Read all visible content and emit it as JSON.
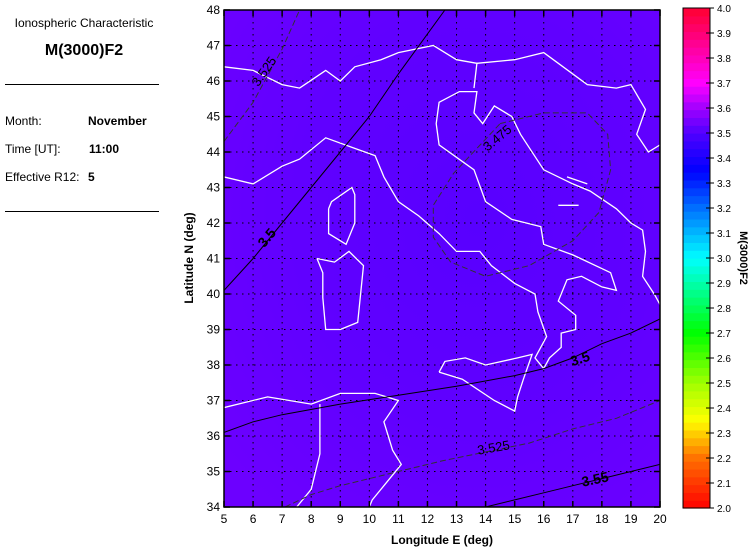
{
  "info": {
    "subtitle": "Ionospheric Characteristic",
    "title": "M(3000)F2",
    "month_label": "Month:",
    "month": "November",
    "time_label": "Time [UT]:",
    "time": "11:00",
    "r12_label": "Effective R12:",
    "r12": "5"
  },
  "chart_data": {
    "type": "heatmap",
    "xlabel": "Longitude E (deg)",
    "ylabel": "Latitude N (deg)",
    "xlim": [
      5,
      20
    ],
    "ylim": [
      34,
      48
    ],
    "xticks": [
      "5",
      "6",
      "7",
      "8",
      "9",
      "10",
      "11",
      "12",
      "13",
      "14",
      "15",
      "16",
      "17",
      "18",
      "19",
      "20"
    ],
    "yticks": [
      "34",
      "35",
      "36",
      "37",
      "38",
      "39",
      "40",
      "41",
      "42",
      "43",
      "44",
      "45",
      "46",
      "47",
      "48"
    ],
    "grid": true,
    "colorbar": {
      "label": "M(3000)F2",
      "range": [
        2.0,
        4.0
      ],
      "ticks": [
        "2.0",
        "2.1",
        "2.2",
        "2.3",
        "2.4",
        "2.5",
        "2.6",
        "2.7",
        "2.8",
        "2.9",
        "3.0",
        "3.1",
        "3.2",
        "3.3",
        "3.4",
        "3.5",
        "3.6",
        "3.7",
        "3.8",
        "3.9",
        "4.0"
      ],
      "colormap": [
        "#ff0000",
        "#ff8000",
        "#ffff00",
        "#00ff00",
        "#00ffff",
        "#0000ff",
        "#ff00ff",
        "#ff0030"
      ]
    },
    "contours": [
      {
        "level": "3.525",
        "style": "dashed"
      },
      {
        "level": "3.5",
        "style": "solid"
      },
      {
        "level": "3.475",
        "style": "dashed"
      },
      {
        "level": "3.5",
        "style": "solid"
      },
      {
        "level": "3.525",
        "style": "dashed"
      },
      {
        "level": "3.55",
        "style": "solid"
      }
    ],
    "field_colors": {
      "low": "#5a00ff",
      "mid": "#6200ff",
      "high": "#7000ff"
    }
  }
}
